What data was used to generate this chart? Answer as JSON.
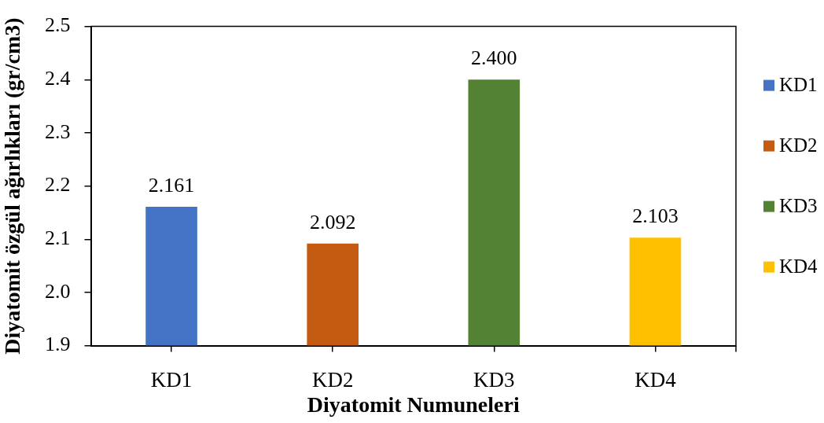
{
  "chart_data": {
    "type": "bar",
    "xlabel": "Diyatomit Numuneleri",
    "ylabel": "Diyatomit özgül ağırlıkları (gr/cm3)",
    "categories": [
      "KD1",
      "KD2",
      "KD3",
      "KD4"
    ],
    "series": [
      {
        "name": "KD1",
        "color": "#4472c4",
        "values": [
          2.161,
          null,
          null,
          null
        ],
        "value_labels": [
          "2.161",
          null,
          null,
          null
        ]
      },
      {
        "name": "KD2",
        "color": "#c55a11",
        "values": [
          null,
          2.092,
          null,
          null
        ],
        "value_labels": [
          null,
          "2.092",
          null,
          null
        ]
      },
      {
        "name": "KD3",
        "color": "#548235",
        "values": [
          null,
          null,
          2.4,
          null
        ],
        "value_labels": [
          null,
          null,
          "2.400",
          null
        ]
      },
      {
        "name": "KD4",
        "color": "#ffc000",
        "values": [
          null,
          null,
          null,
          2.103
        ],
        "value_labels": [
          null,
          null,
          null,
          "2.103"
        ]
      }
    ],
    "ylim": [
      1.9,
      2.5
    ],
    "yticks": [
      1.9,
      {
        "value": 2,
        "label": "2.0"
      },
      2.1,
      2.2,
      2.3,
      2.4,
      2.5
    ],
    "grid": false,
    "legend": "right"
  }
}
